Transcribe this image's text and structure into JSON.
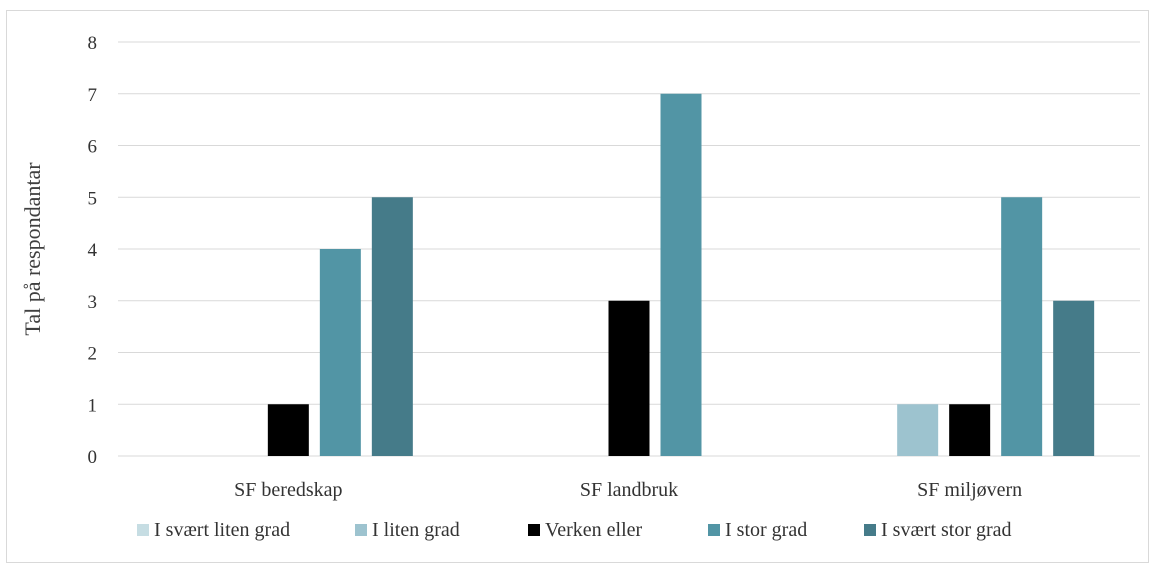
{
  "chart_data": {
    "type": "bar",
    "ylabel": "Tal på respondantar",
    "xlabel": "",
    "ylim": [
      0,
      8
    ],
    "yticks": [
      "0",
      "1",
      "2",
      "3",
      "4",
      "5",
      "6",
      "7",
      "8"
    ],
    "categories": [
      "SF beredskap",
      "SF landbruk",
      "SF miljøvern"
    ],
    "series": [
      {
        "name": "I svært liten grad",
        "values": [
          0,
          0,
          0
        ],
        "color": "#c6dde3"
      },
      {
        "name": "I liten grad",
        "values": [
          0,
          0,
          1
        ],
        "color": "#9dc3cf"
      },
      {
        "name": "Verken eller",
        "values": [
          1,
          3,
          1
        ],
        "color": "#000000"
      },
      {
        "name": "I stor grad",
        "values": [
          4,
          7,
          5
        ],
        "color": "#5295a5"
      },
      {
        "name": "I svært stor grad",
        "values": [
          5,
          0,
          3
        ],
        "color": "#457b89"
      }
    ],
    "grid": true,
    "legend_position": "bottom"
  }
}
